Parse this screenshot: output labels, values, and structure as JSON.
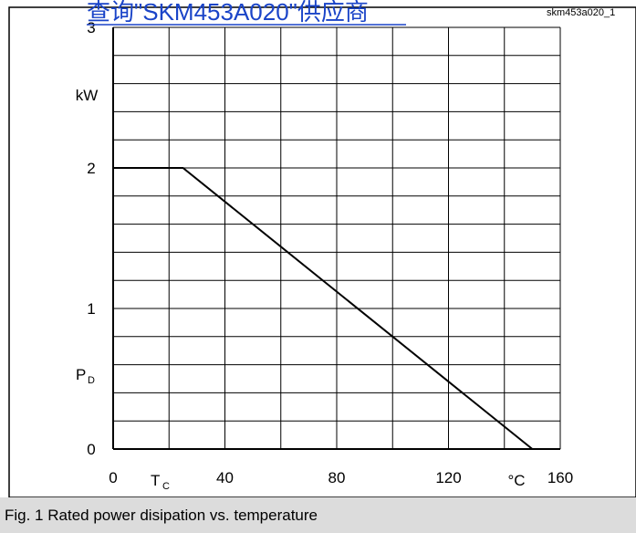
{
  "header": {
    "link_text": "查询\"SKM453A020\"供应商",
    "figure_id": "skm453a020_1"
  },
  "caption": "Fig. 1 Rated power disipation vs. temperature",
  "colors": {
    "link": "#1a44c8",
    "caption_bg": "#dcdcdc",
    "line": "#000000",
    "grid": "#000000"
  },
  "chart_data": {
    "type": "line",
    "title": "",
    "ylabel_unit": "kW",
    "ylabel_symbol": "P",
    "ylabel_subscript": "D",
    "xlabel_symbol": "T",
    "xlabel_subscript": "C",
    "xlabel_unit": "°C",
    "xlim": [
      0,
      160
    ],
    "ylim": [
      0,
      3
    ],
    "x_ticks": [
      "0",
      "40",
      "80",
      "120",
      "160"
    ],
    "y_ticks": [
      "0",
      "1",
      "2",
      "3"
    ],
    "grid": true,
    "x_minor_step": 20,
    "y_minor_step": 0.2,
    "series": [
      {
        "x": [
          0,
          25,
          150
        ],
        "y": [
          2,
          2,
          0
        ]
      }
    ]
  }
}
